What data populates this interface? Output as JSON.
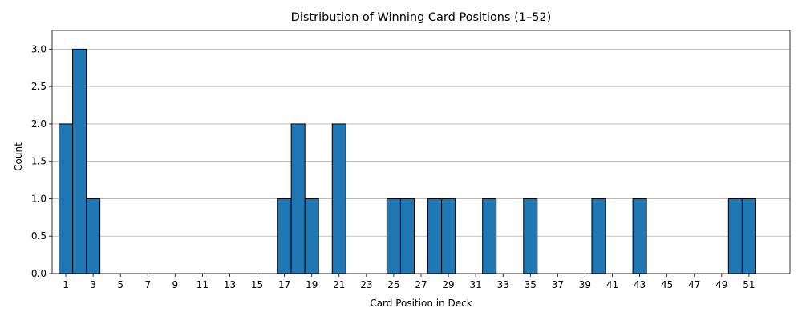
{
  "chart_data": {
    "type": "bar",
    "title": "Distribution of Winning Card Positions (1–52)",
    "xlabel": "Card Position in Deck",
    "ylabel": "Count",
    "ylim": [
      0,
      3.25
    ],
    "xlim": [
      0,
      54
    ],
    "grid": "y",
    "bar_color": "#1f77b4",
    "edge_color": "#000000",
    "x": [
      1,
      2,
      3,
      4,
      5,
      6,
      7,
      8,
      9,
      10,
      11,
      12,
      13,
      14,
      15,
      16,
      17,
      18,
      19,
      20,
      21,
      22,
      23,
      24,
      25,
      26,
      27,
      28,
      29,
      30,
      31,
      32,
      33,
      34,
      35,
      36,
      37,
      38,
      39,
      40,
      41,
      42,
      43,
      44,
      45,
      46,
      47,
      48,
      49,
      50,
      51,
      52
    ],
    "values": [
      2,
      3,
      1,
      0,
      0,
      0,
      0,
      0,
      0,
      0,
      0,
      0,
      0,
      0,
      0,
      0,
      1,
      2,
      1,
      0,
      2,
      0,
      0,
      0,
      1,
      1,
      0,
      1,
      1,
      0,
      0,
      1,
      0,
      0,
      1,
      0,
      0,
      0,
      0,
      1,
      0,
      0,
      1,
      0,
      0,
      0,
      0,
      0,
      0,
      1,
      1,
      0
    ],
    "xticks": [
      1,
      3,
      5,
      7,
      9,
      11,
      13,
      15,
      17,
      19,
      21,
      23,
      25,
      27,
      29,
      31,
      33,
      35,
      37,
      39,
      41,
      43,
      45,
      47,
      49,
      51
    ],
    "yticks": [
      "0.0",
      "0.5",
      "1.0",
      "1.5",
      "2.0",
      "2.5",
      "3.0"
    ]
  }
}
